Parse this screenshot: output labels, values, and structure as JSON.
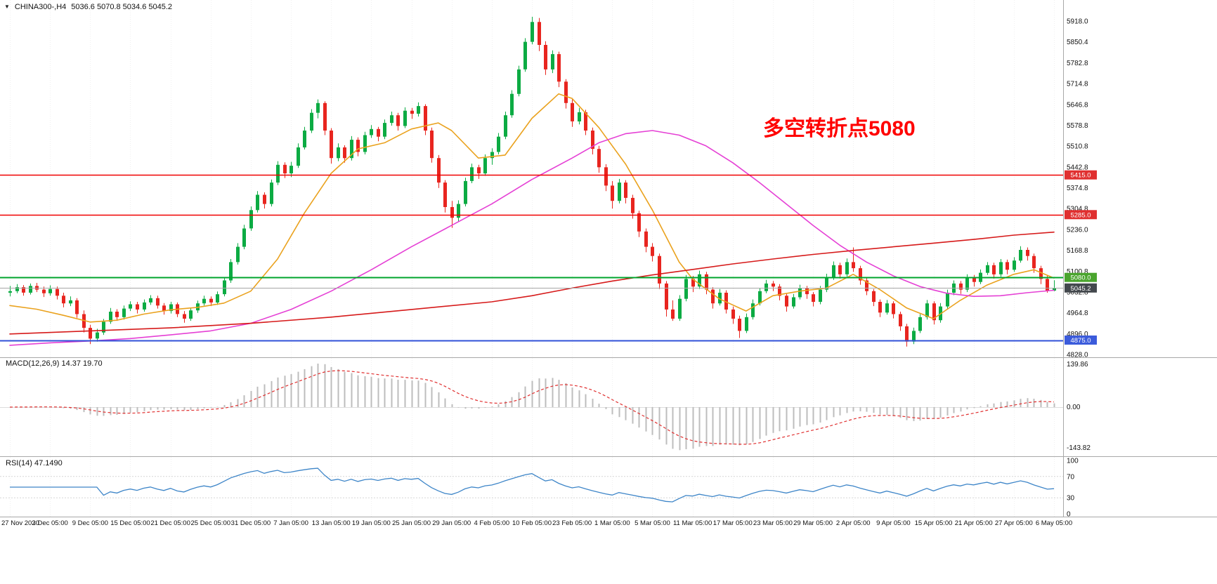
{
  "header": {
    "dropdown_icon": "▼",
    "symbol_period": "CHINA300-,H4",
    "ohlc": "5036.6 5070.8 5034.6 5045.2"
  },
  "main": {
    "annotation": {
      "text": "多空转折点5080",
      "color": "#ff0000"
    }
  },
  "indicators": {
    "macd": {
      "label": "MACD(12,26,9) 14.37 19.70",
      "axis": [
        "139.86",
        "0.00",
        "-143.82"
      ],
      "histogram_color": "#bdbdbd",
      "signal_color": "#e03030",
      "params": {
        "fast": 12,
        "slow": 26,
        "signal": 9
      }
    },
    "rsi": {
      "label": "RSI(14) 47.1490",
      "axis": [
        "100",
        "70",
        "30",
        "0"
      ],
      "line_color": "#3d85c8",
      "period": 14,
      "levels": [
        70,
        30
      ]
    }
  },
  "chart_data": {
    "type": "candlestick",
    "symbol": "CHINA300-",
    "timeframe": "H4",
    "ylim": [
      4828,
      5918
    ],
    "price_axis": [
      "5918.0",
      "5850.4",
      "5782.8",
      "5714.8",
      "5646.8",
      "5578.8",
      "5510.8",
      "5442.8",
      "5374.8",
      "5304.8",
      "5236.0",
      "5168.8",
      "5100.8",
      "5032.8",
      "4964.8",
      "4896.0",
      "4828.0"
    ],
    "time_axis": [
      "27 Nov 2020",
      "3 Dec 05:00",
      "9 Dec 05:00",
      "15 Dec 05:00",
      "21 Dec 05:00",
      "25 Dec 05:00",
      "31 Dec 05:00",
      "7 Jan 05:00",
      "13 Jan 05:00",
      "19 Jan 05:00",
      "25 Jan 05:00",
      "29 Jan 05:00",
      "4 Feb 05:00",
      "10 Feb 05:00",
      "23 Feb 05:00",
      "1 Mar 05:00",
      "5 Mar 05:00",
      "11 Mar 05:00",
      "17 Mar 05:00",
      "23 Mar 05:00",
      "29 Mar 05:00",
      "2 Apr 05:00",
      "9 Apr 05:00",
      "15 Apr 05:00",
      "21 Apr 05:00",
      "27 Apr 05:00",
      "6 May 05:00"
    ],
    "up_color": "#0cab43",
    "down_color": "#e8251f",
    "candles": [
      [
        5030,
        5052,
        5018,
        5035
      ],
      [
        5035,
        5058,
        5028,
        5048
      ],
      [
        5048,
        5055,
        5020,
        5030
      ],
      [
        5030,
        5060,
        5024,
        5052
      ],
      [
        5052,
        5062,
        5032,
        5040
      ],
      [
        5040,
        5050,
        5016,
        5028
      ],
      [
        5028,
        5054,
        5020,
        5042
      ],
      [
        5042,
        5050,
        5008,
        5020
      ],
      [
        5020,
        5030,
        4982,
        4995
      ],
      [
        4995,
        5018,
        4986,
        5005
      ],
      [
        5005,
        5012,
        4948,
        4960
      ],
      [
        4960,
        4972,
        4900,
        4915
      ],
      [
        4915,
        4925,
        4862,
        4880
      ],
      [
        4880,
        4912,
        4870,
        4900
      ],
      [
        4900,
        4944,
        4892,
        4935
      ],
      [
        4935,
        4980,
        4928,
        4968
      ],
      [
        4968,
        4976,
        4938,
        4950
      ],
      [
        4950,
        4988,
        4942,
        4978
      ],
      [
        4978,
        5002,
        4970,
        4992
      ],
      [
        4992,
        5000,
        4962,
        4975
      ],
      [
        4975,
        5008,
        4968,
        4998
      ],
      [
        4998,
        5022,
        4990,
        5012
      ],
      [
        5012,
        5020,
        4978,
        4988
      ],
      [
        4988,
        4996,
        4958,
        4970
      ],
      [
        4970,
        5000,
        4962,
        4992
      ],
      [
        4992,
        4998,
        4950,
        4960
      ],
      [
        4960,
        4970,
        4932,
        4945
      ],
      [
        4945,
        4980,
        4938,
        4972
      ],
      [
        4972,
        5004,
        4964,
        4995
      ],
      [
        4995,
        5020,
        4988,
        5010
      ],
      [
        5010,
        5018,
        4986,
        4998
      ],
      [
        4998,
        5034,
        4990,
        5025
      ],
      [
        5025,
        5080,
        5018,
        5070
      ],
      [
        5070,
        5140,
        5062,
        5130
      ],
      [
        5130,
        5192,
        5122,
        5180
      ],
      [
        5180,
        5252,
        5172,
        5240
      ],
      [
        5240,
        5312,
        5232,
        5300
      ],
      [
        5300,
        5362,
        5292,
        5350
      ],
      [
        5350,
        5358,
        5305,
        5320
      ],
      [
        5320,
        5400,
        5312,
        5390
      ],
      [
        5390,
        5460,
        5382,
        5448
      ],
      [
        5448,
        5456,
        5405,
        5420
      ],
      [
        5420,
        5458,
        5408,
        5445
      ],
      [
        5445,
        5518,
        5438,
        5505
      ],
      [
        5505,
        5572,
        5498,
        5560
      ],
      [
        5560,
        5630,
        5552,
        5618
      ],
      [
        5618,
        5662,
        5600,
        5650
      ],
      [
        5650,
        5656,
        5545,
        5560
      ],
      [
        5560,
        5568,
        5452,
        5470
      ],
      [
        5470,
        5518,
        5460,
        5505
      ],
      [
        5505,
        5512,
        5455,
        5470
      ],
      [
        5470,
        5542,
        5462,
        5530
      ],
      [
        5530,
        5538,
        5476,
        5490
      ],
      [
        5490,
        5556,
        5482,
        5545
      ],
      [
        5545,
        5578,
        5536,
        5565
      ],
      [
        5565,
        5572,
        5525,
        5540
      ],
      [
        5540,
        5596,
        5532,
        5585
      ],
      [
        5585,
        5622,
        5576,
        5610
      ],
      [
        5610,
        5618,
        5560,
        5575
      ],
      [
        5575,
        5636,
        5568,
        5625
      ],
      [
        5625,
        5634,
        5598,
        5615
      ],
      [
        5615,
        5652,
        5606,
        5640
      ],
      [
        5640,
        5646,
        5545,
        5560
      ],
      [
        5560,
        5570,
        5455,
        5470
      ],
      [
        5470,
        5480,
        5372,
        5390
      ],
      [
        5390,
        5398,
        5292,
        5310
      ],
      [
        5310,
        5330,
        5242,
        5275
      ],
      [
        5275,
        5332,
        5262,
        5320
      ],
      [
        5320,
        5406,
        5312,
        5395
      ],
      [
        5395,
        5452,
        5388,
        5440
      ],
      [
        5440,
        5448,
        5402,
        5420
      ],
      [
        5420,
        5482,
        5412,
        5470
      ],
      [
        5470,
        5502,
        5448,
        5490
      ],
      [
        5490,
        5552,
        5482,
        5540
      ],
      [
        5540,
        5622,
        5532,
        5610
      ],
      [
        5610,
        5692,
        5602,
        5680
      ],
      [
        5680,
        5772,
        5672,
        5760
      ],
      [
        5760,
        5862,
        5752,
        5850
      ],
      [
        5850,
        5932,
        5842,
        5915
      ],
      [
        5915,
        5928,
        5820,
        5840
      ],
      [
        5840,
        5852,
        5742,
        5760
      ],
      [
        5760,
        5822,
        5748,
        5810
      ],
      [
        5810,
        5818,
        5702,
        5720
      ],
      [
        5720,
        5728,
        5632,
        5650
      ],
      [
        5650,
        5662,
        5572,
        5590
      ],
      [
        5590,
        5634,
        5580,
        5620
      ],
      [
        5620,
        5628,
        5545,
        5560
      ],
      [
        5560,
        5570,
        5482,
        5500
      ],
      [
        5500,
        5510,
        5422,
        5440
      ],
      [
        5440,
        5450,
        5362,
        5380
      ],
      [
        5380,
        5395,
        5305,
        5330
      ],
      [
        5330,
        5402,
        5322,
        5390
      ],
      [
        5390,
        5398,
        5322,
        5340
      ],
      [
        5340,
        5350,
        5272,
        5290
      ],
      [
        5290,
        5298,
        5212,
        5230
      ],
      [
        5230,
        5240,
        5162,
        5180
      ],
      [
        5180,
        5192,
        5132,
        5150
      ],
      [
        5150,
        5158,
        5042,
        5060
      ],
      [
        5060,
        5068,
        4952,
        4975
      ],
      [
        4975,
        5005,
        4938,
        4945
      ],
      [
        4945,
        5022,
        4938,
        5010
      ],
      [
        5010,
        5088,
        5002,
        5075
      ],
      [
        5075,
        5085,
        5032,
        5050
      ],
      [
        5050,
        5102,
        5042,
        5090
      ],
      [
        5090,
        5098,
        5025,
        5040
      ],
      [
        5040,
        5048,
        4978,
        4995
      ],
      [
        4995,
        5042,
        4988,
        5030
      ],
      [
        5030,
        5038,
        4962,
        4975
      ],
      [
        4975,
        4985,
        4928,
        4945
      ],
      [
        4945,
        4955,
        4882,
        4905
      ],
      [
        4905,
        4962,
        4898,
        4950
      ],
      [
        4950,
        5008,
        4942,
        4995
      ],
      [
        4995,
        5046,
        4988,
        5035
      ],
      [
        5035,
        5072,
        5028,
        5060
      ],
      [
        5060,
        5068,
        5035,
        5050
      ],
      [
        5050,
        5058,
        5005,
        5020
      ],
      [
        5020,
        5028,
        4968,
        4985
      ],
      [
        4985,
        5026,
        4978,
        5015
      ],
      [
        5015,
        5056,
        5008,
        5045
      ],
      [
        5045,
        5052,
        5010,
        5025
      ],
      [
        5025,
        5032,
        4985,
        5000
      ],
      [
        5000,
        5052,
        4992,
        5040
      ],
      [
        5040,
        5092,
        5032,
        5080
      ],
      [
        5080,
        5132,
        5072,
        5120
      ],
      [
        5120,
        5128,
        5076,
        5090
      ],
      [
        5090,
        5142,
        5082,
        5130
      ],
      [
        5130,
        5178,
        5098,
        5110
      ],
      [
        5110,
        5118,
        5056,
        5070
      ],
      [
        5070,
        5078,
        5022,
        5035
      ],
      [
        5035,
        5042,
        4986,
        5000
      ],
      [
        5000,
        5008,
        4950,
        4965
      ],
      [
        4965,
        5006,
        4958,
        4995
      ],
      [
        4995,
        5002,
        4946,
        4960
      ],
      [
        4960,
        4968,
        4905,
        4920
      ],
      [
        4920,
        4928,
        4854,
        4870
      ],
      [
        4870,
        4916,
        4862,
        4905
      ],
      [
        4905,
        4960,
        4898,
        4950
      ],
      [
        4950,
        5006,
        4942,
        4995
      ],
      [
        4995,
        5002,
        4926,
        4940
      ],
      [
        4940,
        4996,
        4932,
        4985
      ],
      [
        4985,
        5040,
        4978,
        5030
      ],
      [
        5030,
        5070,
        5022,
        5060
      ],
      [
        5060,
        5068,
        5026,
        5040
      ],
      [
        5040,
        5090,
        5032,
        5080
      ],
      [
        5080,
        5088,
        5050,
        5065
      ],
      [
        5065,
        5106,
        5058,
        5095
      ],
      [
        5095,
        5130,
        5088,
        5120
      ],
      [
        5120,
        5128,
        5076,
        5090
      ],
      [
        5090,
        5140,
        5082,
        5130
      ],
      [
        5130,
        5138,
        5090,
        5105
      ],
      [
        5105,
        5146,
        5098,
        5135
      ],
      [
        5135,
        5182,
        5128,
        5170
      ],
      [
        5170,
        5178,
        5135,
        5150
      ],
      [
        5150,
        5158,
        5095,
        5110
      ],
      [
        5110,
        5118,
        5058,
        5075
      ],
      [
        5075,
        5086,
        5030,
        5037
      ],
      [
        5036.6,
        5070.8,
        5034.6,
        5045.2
      ]
    ],
    "moving_averages": [
      {
        "name": "ma-fast",
        "color": "#eaa21e",
        "points": [
          [
            0,
            4988
          ],
          [
            4,
            4976
          ],
          [
            8,
            4956
          ],
          [
            12,
            4934
          ],
          [
            16,
            4940
          ],
          [
            20,
            4960
          ],
          [
            24,
            4974
          ],
          [
            28,
            4982
          ],
          [
            32,
            4996
          ],
          [
            36,
            5035
          ],
          [
            40,
            5140
          ],
          [
            44,
            5290
          ],
          [
            48,
            5420
          ],
          [
            52,
            5500
          ],
          [
            56,
            5520
          ],
          [
            60,
            5565
          ],
          [
            64,
            5585
          ],
          [
            66,
            5560
          ],
          [
            70,
            5470
          ],
          [
            74,
            5480
          ],
          [
            78,
            5600
          ],
          [
            82,
            5680
          ],
          [
            84,
            5665
          ],
          [
            88,
            5570
          ],
          [
            92,
            5450
          ],
          [
            96,
            5300
          ],
          [
            100,
            5130
          ],
          [
            102,
            5075
          ],
          [
            106,
            5010
          ],
          [
            110,
            4970
          ],
          [
            114,
            5020
          ],
          [
            118,
            5035
          ],
          [
            122,
            5045
          ],
          [
            126,
            5090
          ],
          [
            130,
            5040
          ],
          [
            134,
            4980
          ],
          [
            138,
            4945
          ],
          [
            142,
            5005
          ],
          [
            146,
            5055
          ],
          [
            150,
            5090
          ],
          [
            153,
            5105
          ],
          [
            156,
            5078
          ]
        ]
      },
      {
        "name": "ma-mid",
        "color": "#e540d5",
        "points": [
          [
            0,
            4858
          ],
          [
            6,
            4866
          ],
          [
            12,
            4872
          ],
          [
            18,
            4880
          ],
          [
            24,
            4892
          ],
          [
            30,
            4905
          ],
          [
            36,
            4930
          ],
          [
            42,
            4975
          ],
          [
            48,
            5035
          ],
          [
            54,
            5105
          ],
          [
            60,
            5180
          ],
          [
            66,
            5250
          ],
          [
            72,
            5320
          ],
          [
            78,
            5400
          ],
          [
            84,
            5470
          ],
          [
            88,
            5520
          ],
          [
            92,
            5550
          ],
          [
            96,
            5560
          ],
          [
            100,
            5545
          ],
          [
            104,
            5510
          ],
          [
            108,
            5455
          ],
          [
            112,
            5390
          ],
          [
            116,
            5320
          ],
          [
            120,
            5250
          ],
          [
            124,
            5185
          ],
          [
            128,
            5130
          ],
          [
            132,
            5085
          ],
          [
            136,
            5050
          ],
          [
            140,
            5028
          ],
          [
            144,
            5018
          ],
          [
            148,
            5020
          ],
          [
            152,
            5030
          ],
          [
            156,
            5038
          ]
        ]
      },
      {
        "name": "ma-slow",
        "color": "#d61a1a",
        "points": [
          [
            0,
            4895
          ],
          [
            12,
            4905
          ],
          [
            24,
            4915
          ],
          [
            36,
            4930
          ],
          [
            48,
            4950
          ],
          [
            60,
            4975
          ],
          [
            72,
            5000
          ],
          [
            78,
            5020
          ],
          [
            84,
            5045
          ],
          [
            90,
            5068
          ],
          [
            96,
            5088
          ],
          [
            102,
            5106
          ],
          [
            108,
            5124
          ],
          [
            114,
            5140
          ],
          [
            120,
            5155
          ],
          [
            126,
            5168
          ],
          [
            132,
            5180
          ],
          [
            138,
            5192
          ],
          [
            144,
            5204
          ],
          [
            150,
            5218
          ],
          [
            156,
            5228
          ]
        ]
      }
    ],
    "hlines": [
      {
        "price": 5415.0,
        "label": "5415.0",
        "color": "#f00000",
        "tag_bg": "#e03030",
        "width": 1.6
      },
      {
        "price": 5285.0,
        "label": "5285.0",
        "color": "#f00000",
        "tag_bg": "#e03030",
        "width": 1.6
      },
      {
        "price": 5080.0,
        "label": "5080.0",
        "color": "#00a42c",
        "tag_bg": "#4aa52e",
        "width": 2
      },
      {
        "price": 4875.0,
        "label": "4875.0",
        "color": "#3050d8",
        "tag_bg": "#3b5bdb",
        "width": 2
      }
    ],
    "current_price": {
      "value": 5045.2,
      "label": "5045.2",
      "line_color": "#a6a6a6",
      "tag_bg": "#43484d"
    }
  }
}
